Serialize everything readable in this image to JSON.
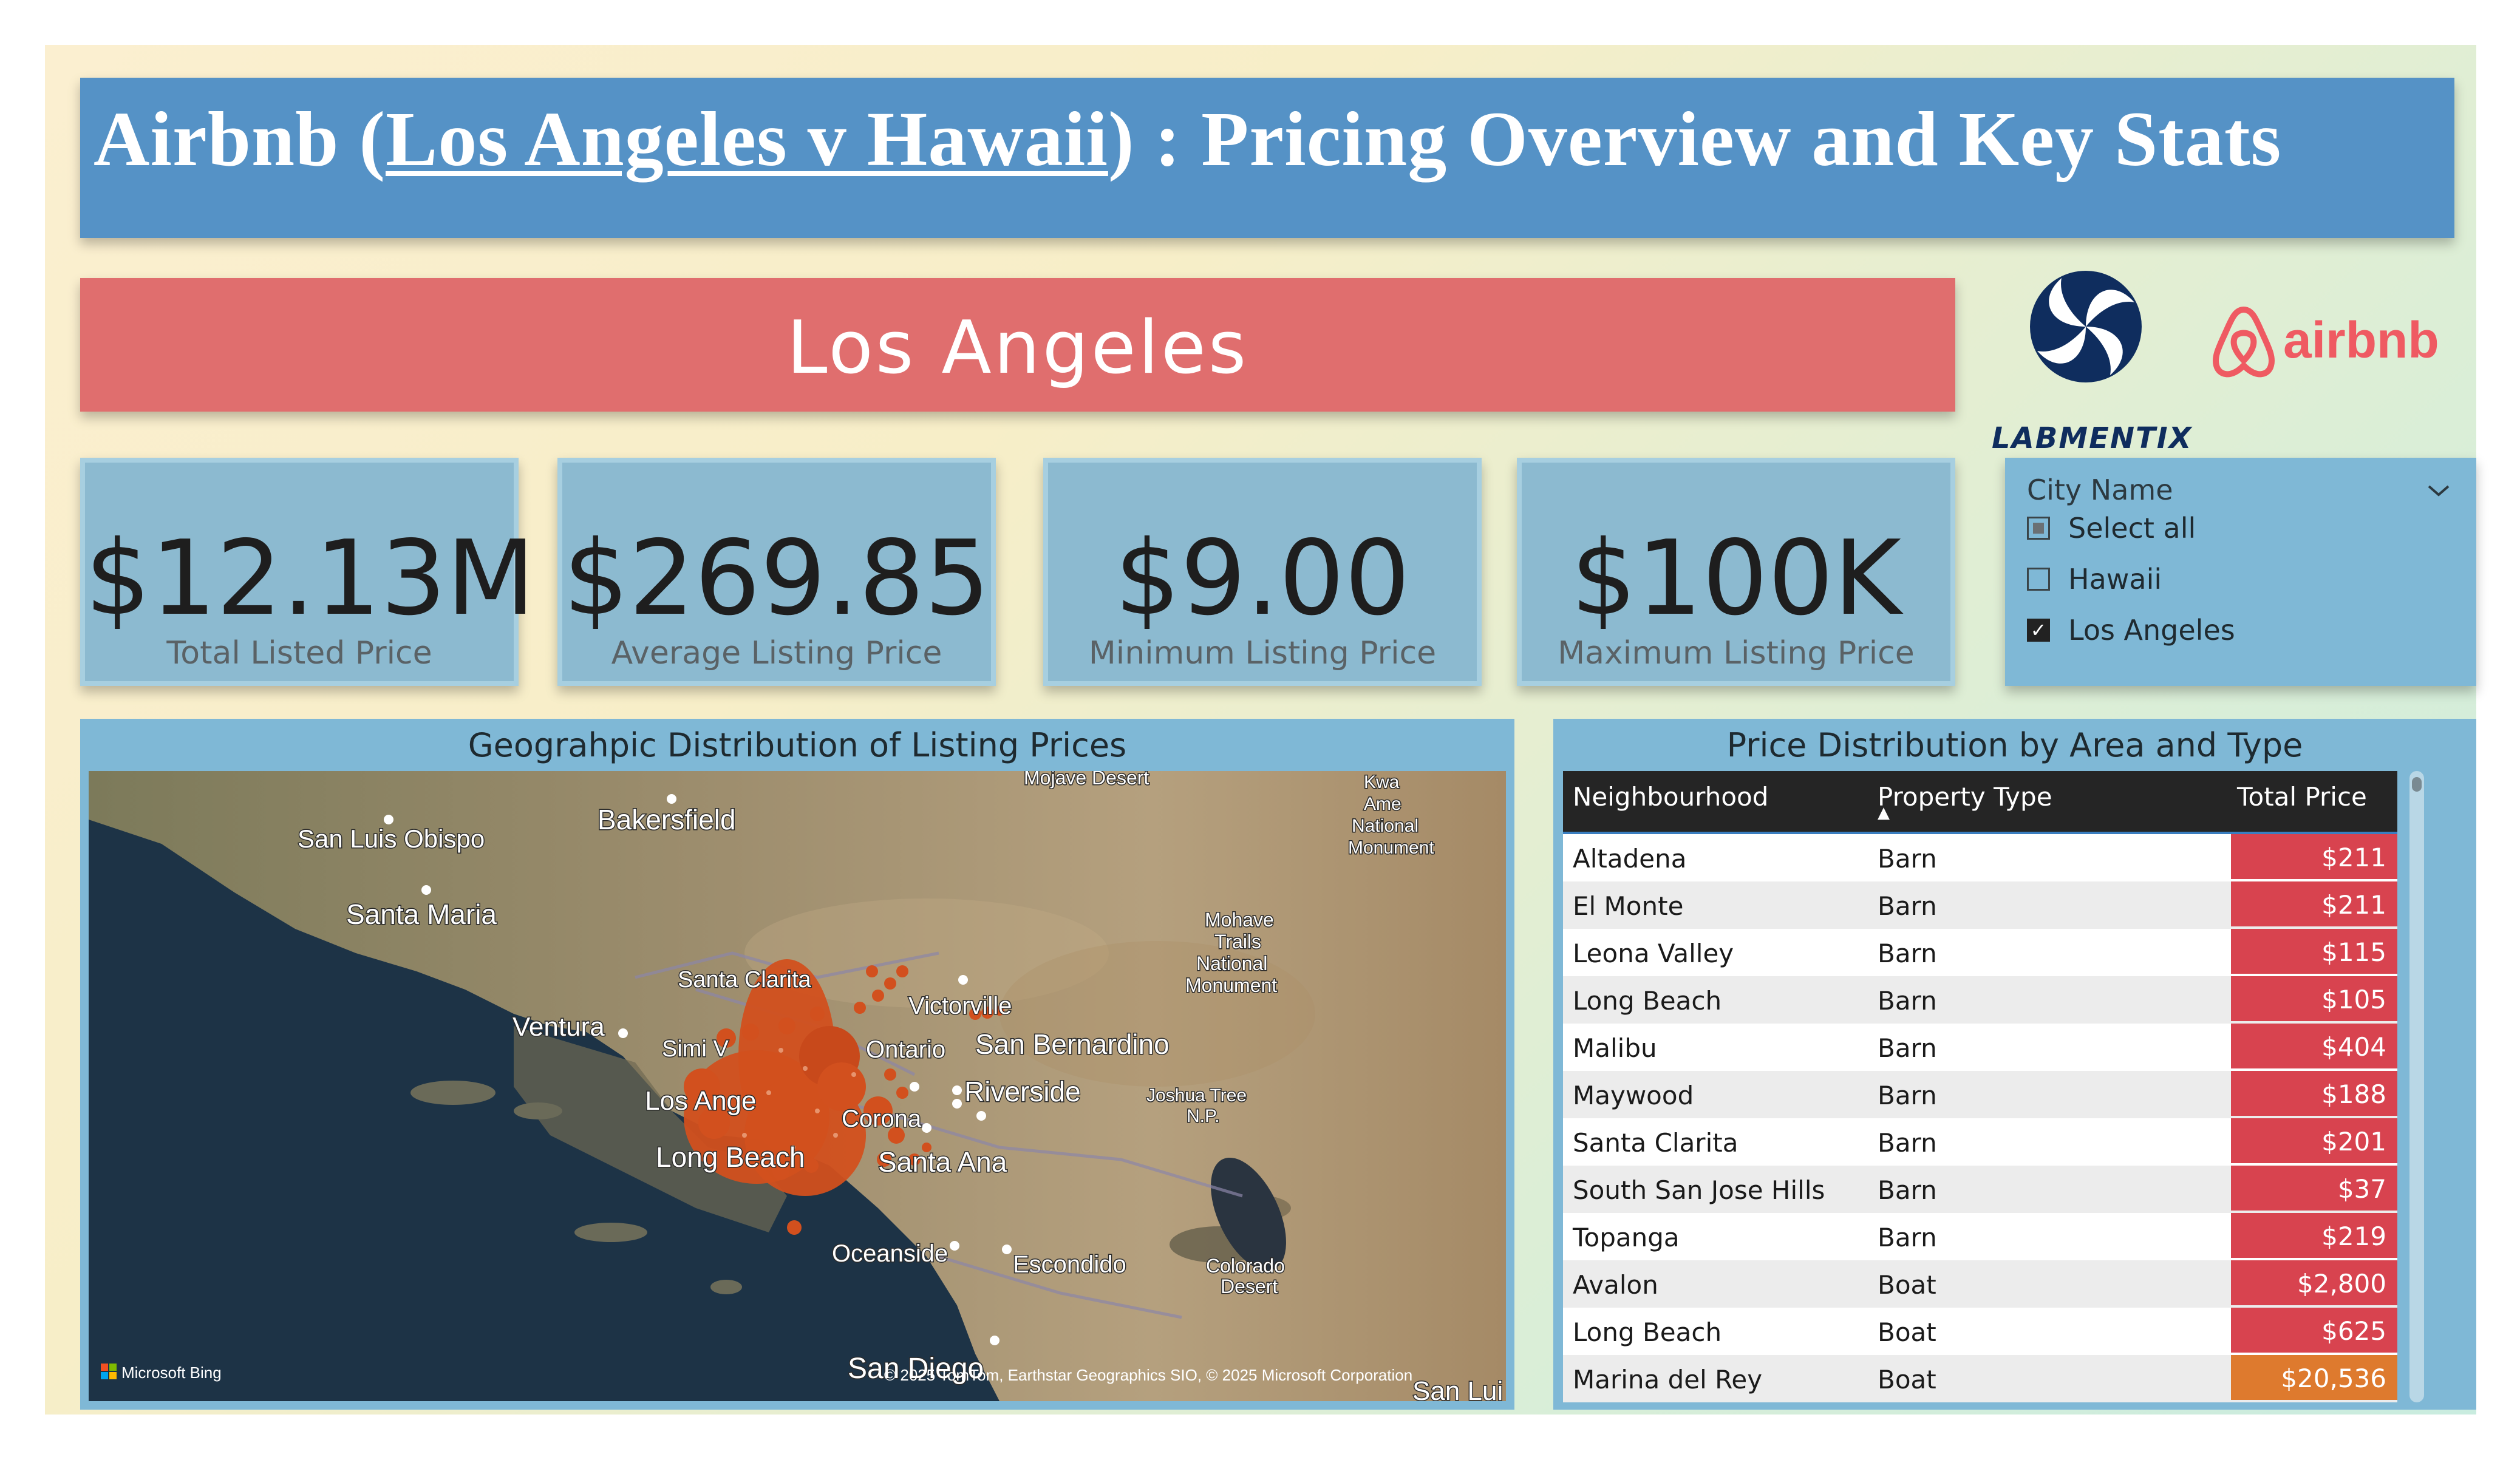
{
  "title": {
    "prefix": "Airbnb (",
    "underlined": "Los Angeles v Hawaii",
    "suffix": ") : Pricing Overview and Key Stats"
  },
  "city_banner": "Los Angeles",
  "logos": {
    "labmentix": "LABMENTIX",
    "airbnb": "airbnb"
  },
  "kpis": [
    {
      "value": "$12.13M",
      "label": "Total Listed Price"
    },
    {
      "value": "$269.85",
      "label": "Average Listing Price"
    },
    {
      "value": "$9.00",
      "label": "Minimum Listing Price"
    },
    {
      "value": "$100K",
      "label": "Maximum Listing Price"
    }
  ],
  "slicer": {
    "title": "City Name",
    "items": [
      {
        "label": "Select all",
        "state": "partial"
      },
      {
        "label": "Hawaii",
        "state": "unchecked"
      },
      {
        "label": "Los Angeles",
        "state": "checked"
      }
    ]
  },
  "map": {
    "title": "Geograhpic Distribution of Listing Prices",
    "labels": {
      "san_luis_obispo": "San Luis Obispo",
      "bakersfield": "Bakersfield",
      "santa_maria": "Santa Maria",
      "mojave_desert": "Mojave Desert",
      "kwa_1": "Kwa",
      "kwa_2": "Ame",
      "kwa_3": "National",
      "kwa_4": "Monument",
      "santa_clarita": "Santa Clarita",
      "ventura": "Ventura",
      "victorville": "Victorville",
      "simi": "Simi V",
      "ontario": "Ontario",
      "san_bernardino": "San Bernardino",
      "los_angeles": "Los Ange",
      "riverside": "Riverside",
      "corona": "Corona",
      "long_beach": "Long Beach",
      "santa_ana": "Santa Ana",
      "mohave_1": "Mohave",
      "mohave_2": "Trails",
      "mohave_3": "National",
      "mohave_4": "Monument",
      "joshua_1": "Joshua Tree",
      "joshua_2": "N.P.",
      "oceanside": "Oceanside",
      "escondido": "Escondido",
      "colorado_1": "Colorado",
      "colorado_2": "Desert",
      "san_diego": "San Diego",
      "san_lui": "San Lui"
    },
    "bing": "Microsoft Bing",
    "attribution": "© 2025 TomTom, Earthstar Geographics SIO, © 2025 Microsoft Corporation"
  },
  "table": {
    "title": "Price Distribution by Area and Type",
    "columns": [
      "Neighbourhood",
      "Property Type",
      "Total Price"
    ],
    "sort_indicator": "▲",
    "rows": [
      {
        "neighbourhood": "Altadena",
        "type": "Barn",
        "price": "$211",
        "color": "#d8434f"
      },
      {
        "neighbourhood": "El Monte",
        "type": "Barn",
        "price": "$211",
        "color": "#d8434f"
      },
      {
        "neighbourhood": "Leona Valley",
        "type": "Barn",
        "price": "$115",
        "color": "#d8434f"
      },
      {
        "neighbourhood": "Long Beach",
        "type": "Barn",
        "price": "$105",
        "color": "#d8434f"
      },
      {
        "neighbourhood": "Malibu",
        "type": "Barn",
        "price": "$404",
        "color": "#d8434f"
      },
      {
        "neighbourhood": "Maywood",
        "type": "Barn",
        "price": "$188",
        "color": "#d8434f"
      },
      {
        "neighbourhood": "Santa Clarita",
        "type": "Barn",
        "price": "$201",
        "color": "#d8434f"
      },
      {
        "neighbourhood": "South San Jose Hills",
        "type": "Barn",
        "price": "$37",
        "color": "#d8434f"
      },
      {
        "neighbourhood": "Topanga",
        "type": "Barn",
        "price": "$219",
        "color": "#d8434f"
      },
      {
        "neighbourhood": "Avalon",
        "type": "Boat",
        "price": "$2,800",
        "color": "#d8434f"
      },
      {
        "neighbourhood": "Long Beach",
        "type": "Boat",
        "price": "$625",
        "color": "#d8434f"
      },
      {
        "neighbourhood": "Marina del Rey",
        "type": "Boat",
        "price": "$20,536",
        "color": "#de7a2e"
      }
    ]
  }
}
